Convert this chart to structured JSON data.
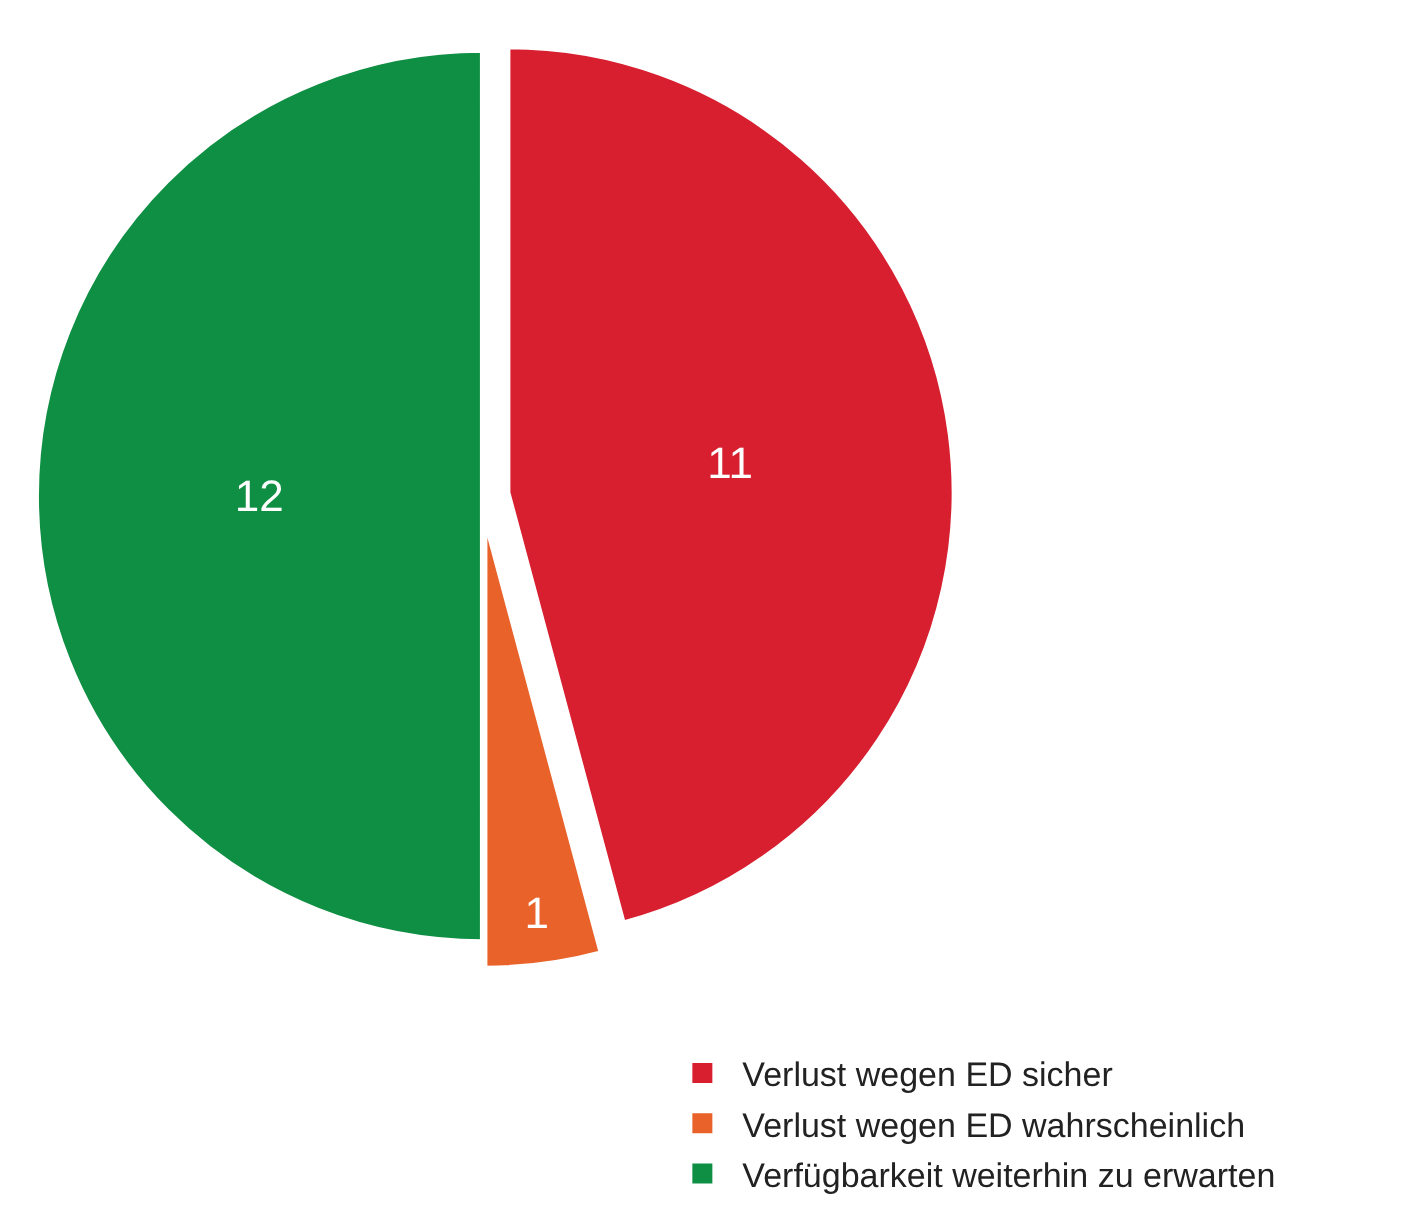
{
  "chart_data": {
    "type": "pie",
    "categories": [
      "Verlust wegen ED sicher",
      "Verlust wegen ED wahrscheinlich",
      "Verfügbarkeit weiterhin zu erwarten"
    ],
    "values": [
      11,
      1,
      12
    ],
    "colors": [
      "#d71f30",
      "#e8622a",
      "#0f8f43"
    ],
    "data_labels": true,
    "legend": "bottom right"
  }
}
